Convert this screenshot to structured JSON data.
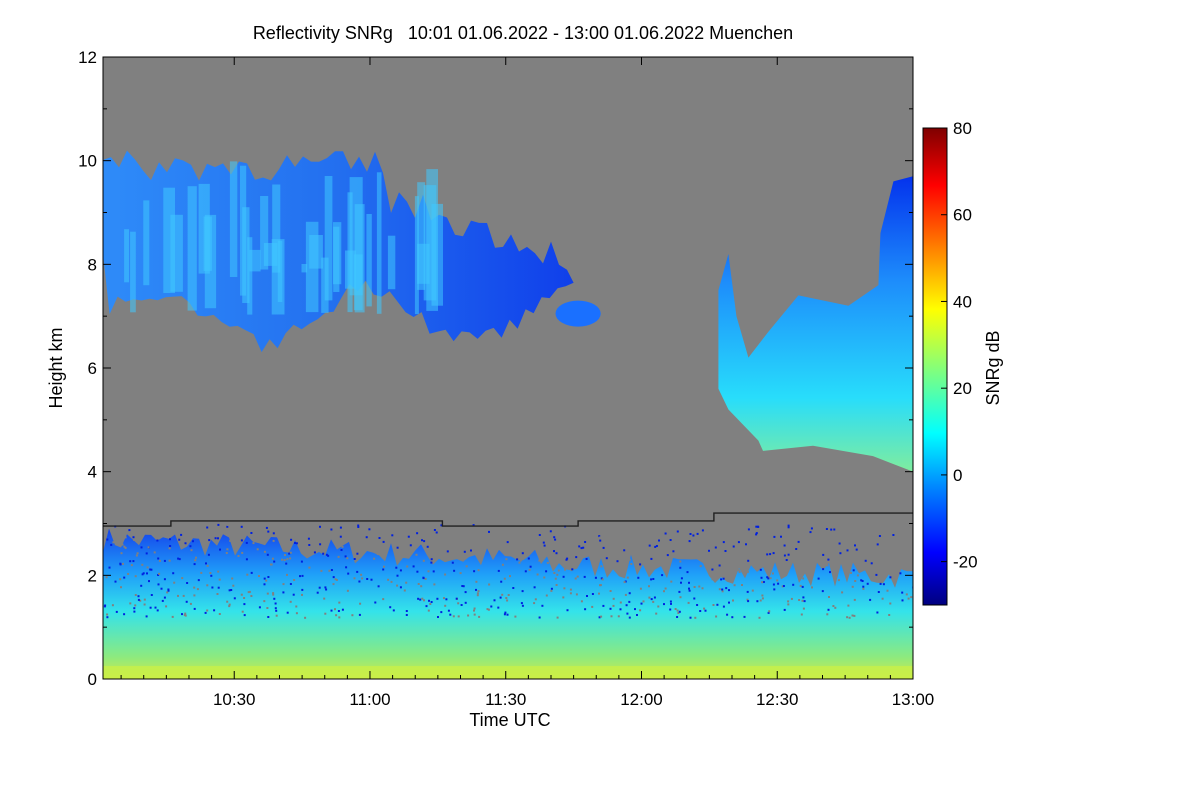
{
  "chart_data": {
    "type": "heatmap",
    "title": "Reflectivity SNRg   10:01 01.06.2022 - 13:00 01.06.2022 Muenchen",
    "xlabel": "Time UTC",
    "ylabel": "Height km",
    "colorbar_label": "SNRg dB",
    "xlim": [
      "10:01",
      "13:00"
    ],
    "ylim": [
      0,
      12
    ],
    "x_ticks": [
      "10:30",
      "11:00",
      "11:30",
      "12:00",
      "12:30",
      "13:00"
    ],
    "y_ticks": [
      0,
      2,
      4,
      6,
      8,
      10,
      12
    ],
    "colorbar_range": [
      -30,
      80
    ],
    "colorbar_ticks": [
      -20,
      0,
      20,
      40,
      60,
      80
    ],
    "background_color": "#808080",
    "colormap": [
      "#00007f",
      "#0000ff",
      "#007fff",
      "#00ffff",
      "#7fff7f",
      "#ffff00",
      "#ff7f00",
      "#ff0000",
      "#7f0000"
    ],
    "melting_layer_km": [
      {
        "time": "10:01",
        "height": 2.95
      },
      {
        "time": "10:16",
        "height": 2.95
      },
      {
        "time": "10:16",
        "height": 3.05
      },
      {
        "time": "11:16",
        "height": 3.05
      },
      {
        "time": "11:16",
        "height": 2.95
      },
      {
        "time": "11:46",
        "height": 2.95
      },
      {
        "time": "11:46",
        "height": 3.05
      },
      {
        "time": "12:16",
        "height": 3.05
      },
      {
        "time": "12:16",
        "height": 3.2
      },
      {
        "time": "13:00",
        "height": 3.2
      }
    ],
    "echo_regions": [
      {
        "name": "upper cirrus layer",
        "t_start": "10:01",
        "t_end": "11:45",
        "base_km": 6.3,
        "top_km": 10.3,
        "snr_db": -5
      },
      {
        "name": "small patch",
        "t_start": "11:41",
        "t_end": "11:51",
        "base_km": 6.8,
        "top_km": 7.3,
        "snr_db": -12
      },
      {
        "name": "mid-level cloud",
        "t_start": "12:17",
        "t_end": "13:00",
        "base_km": 4.0,
        "top_km": 9.7,
        "snr_db": 5
      },
      {
        "name": "boundary layer returns",
        "t_start": "10:01",
        "t_end": "13:00",
        "base_km": 0.0,
        "top_km": 3.0,
        "snr_db": 15
      }
    ]
  }
}
